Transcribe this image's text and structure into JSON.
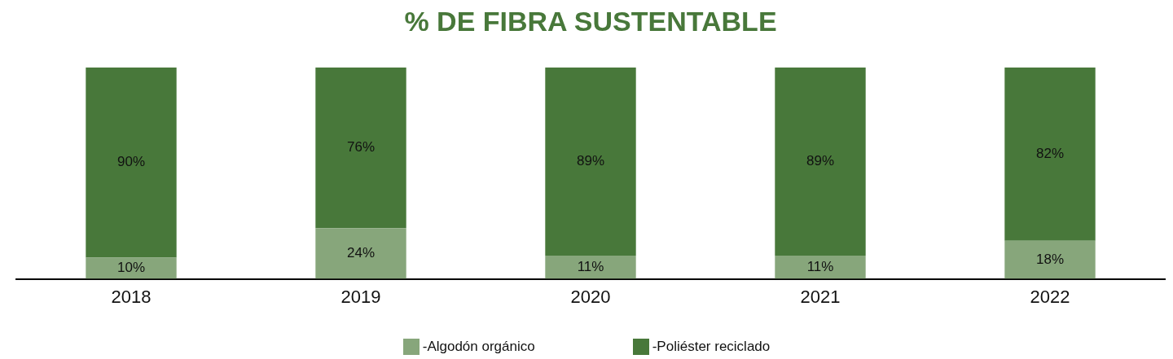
{
  "chart_data": {
    "type": "bar",
    "title": "% DE FIBRA SUSTENTABLE",
    "categories": [
      "2018",
      "2019",
      "2020",
      "2021",
      "2022"
    ],
    "stacked": true,
    "legend": "bottom",
    "grid": false,
    "series": [
      {
        "name": "-Algodón orgánico",
        "color": "#87a67b",
        "values": [
          10,
          24,
          11,
          11,
          18
        ],
        "value_labels": [
          "10%",
          "24%",
          "11%",
          "11%",
          "18%"
        ]
      },
      {
        "name": "-Poliéster reciclado",
        "color": "#48783a",
        "values": [
          90,
          76,
          89,
          89,
          82
        ],
        "value_labels": [
          "90%",
          "76%",
          "89%",
          "89%",
          "82%"
        ]
      }
    ]
  }
}
